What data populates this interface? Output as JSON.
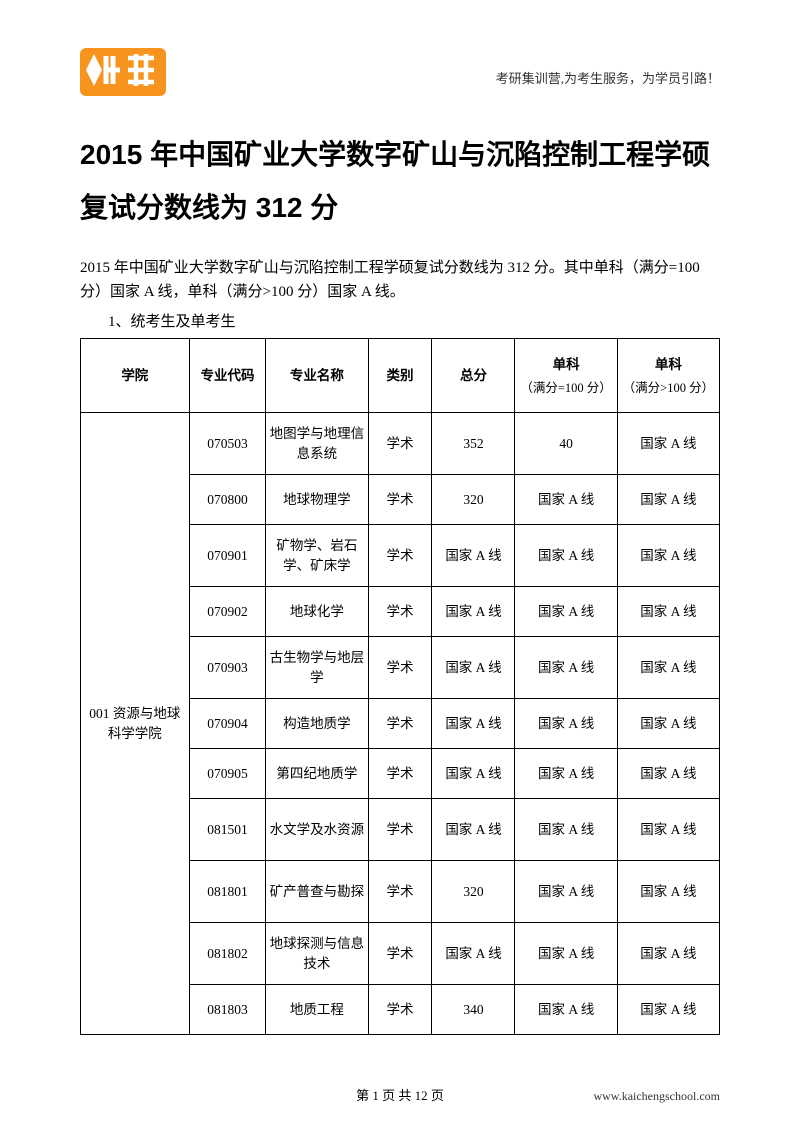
{
  "header": {
    "tagline": "考研集训营,为考生服务，为学员引路！",
    "logo_colors": {
      "orange": "#f7941d",
      "white": "#ffffff"
    }
  },
  "title": "2015 年中国矿业大学数字矿山与沉陷控制工程学硕复试分数线为 312 分",
  "intro": "2015 年中国矿业大学数字矿山与沉陷控制工程学硕复试分数线为 312 分。其中单科（满分=100 分）国家 A 线，单科（满分>100 分）国家 A 线。",
  "section_label": "1、统考生及单考生",
  "table": {
    "columns": [
      {
        "label": "学院",
        "width": "17%"
      },
      {
        "label": "专业代码",
        "width": "12%"
      },
      {
        "label": "专业名称",
        "width": "16%"
      },
      {
        "label": "类别",
        "width": "10%"
      },
      {
        "label": "总分",
        "width": "13%"
      },
      {
        "label": "单科",
        "sub": "（满分=100 分）",
        "width": "16%"
      },
      {
        "label": "单科",
        "sub": "（满分>100 分）",
        "width": "16%"
      }
    ],
    "college": "001 资源与地球科学学院",
    "rows": [
      {
        "code": "070503",
        "name": "地图学与地理信息系统",
        "type": "学术",
        "total": "352",
        "s1": "40",
        "s2": "国家 A 线"
      },
      {
        "code": "070800",
        "name": "地球物理学",
        "type": "学术",
        "total": "320",
        "s1": "国家 A 线",
        "s2": "国家 A 线"
      },
      {
        "code": "070901",
        "name": "矿物学、岩石学、矿床学",
        "type": "学术",
        "total": "国家 A 线",
        "s1": "国家 A 线",
        "s2": "国家 A 线"
      },
      {
        "code": "070902",
        "name": "地球化学",
        "type": "学术",
        "total": "国家 A 线",
        "s1": "国家 A 线",
        "s2": "国家 A 线"
      },
      {
        "code": "070903",
        "name": "古生物学与地层学",
        "type": "学术",
        "total": "国家 A 线",
        "s1": "国家 A 线",
        "s2": "国家 A 线"
      },
      {
        "code": "070904",
        "name": "构造地质学",
        "type": "学术",
        "total": "国家 A 线",
        "s1": "国家 A 线",
        "s2": "国家 A 线"
      },
      {
        "code": "070905",
        "name": "第四纪地质学",
        "type": "学术",
        "total": "国家 A 线",
        "s1": "国家 A 线",
        "s2": "国家 A 线"
      },
      {
        "code": "081501",
        "name": "水文学及水资源",
        "type": "学术",
        "total": "国家 A 线",
        "s1": "国家 A 线",
        "s2": "国家 A 线"
      },
      {
        "code": "081801",
        "name": "矿产普查与勘探",
        "type": "学术",
        "total": "320",
        "s1": "国家 A 线",
        "s2": "国家 A 线"
      },
      {
        "code": "081802",
        "name": "地球探测与信息技术",
        "type": "学术",
        "total": "国家 A 线",
        "s1": "国家 A 线",
        "s2": "国家 A 线"
      },
      {
        "code": "081803",
        "name": "地质工程",
        "type": "学术",
        "total": "340",
        "s1": "国家 A 线",
        "s2": "国家 A 线"
      }
    ]
  },
  "footer": {
    "page_text": "第 1 页 共 12 页",
    "url": "www.kaichengschool.com"
  }
}
